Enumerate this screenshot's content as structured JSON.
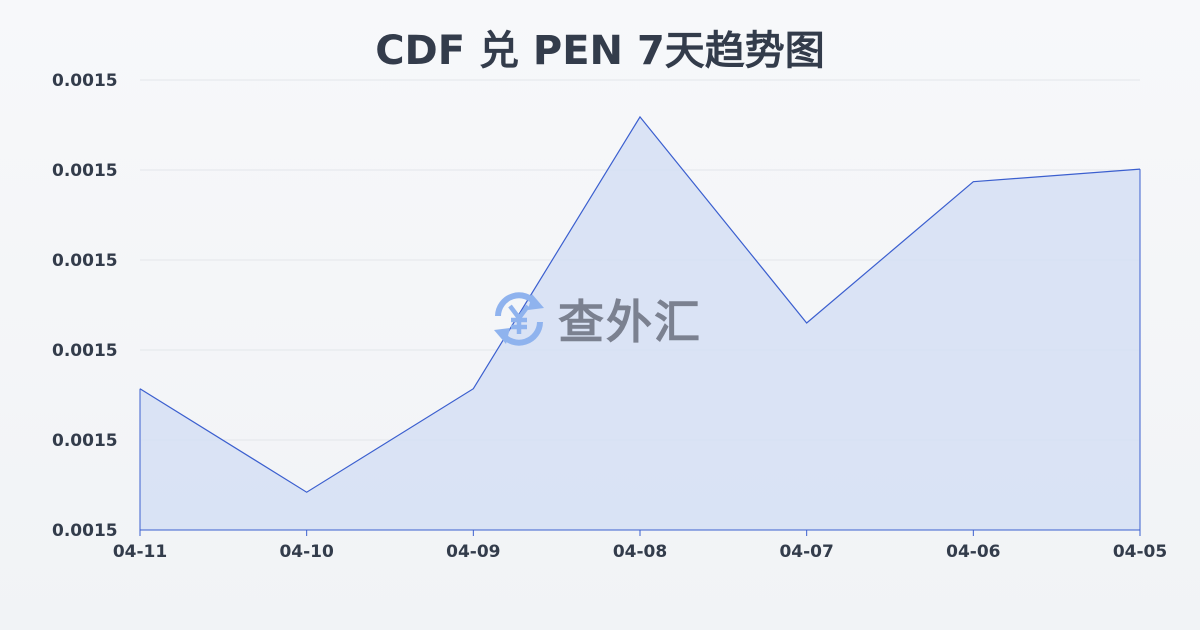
{
  "chart_data": {
    "type": "area",
    "title": "CDF 兑 PEN 7天趋势图",
    "xlabel": "",
    "ylabel": "",
    "categories": [
      "04-11",
      "04-10",
      "04-09",
      "04-08",
      "04-07",
      "04-06",
      "04-05"
    ],
    "values": [
      0.0014957,
      0.0014842,
      0.0014957,
      0.0015259,
      0.001503,
      0.0015187,
      0.0015201
    ],
    "ylim": [
      0.00148,
      0.00153
    ],
    "yticks": [
      0.00148,
      0.00149,
      0.0015,
      0.00151,
      0.00152,
      0.00153
    ],
    "ytick_labels": [
      "0.0015",
      "0.0015",
      "0.0015",
      "0.0015",
      "0.0015",
      "0.0015"
    ],
    "grid": true,
    "line_color": "#3b5fcf",
    "fill_color": "#d5dff5"
  },
  "watermark": {
    "text": "查外汇",
    "icon": "yen-exchange-icon",
    "icon_color": "#8fb3ee"
  }
}
